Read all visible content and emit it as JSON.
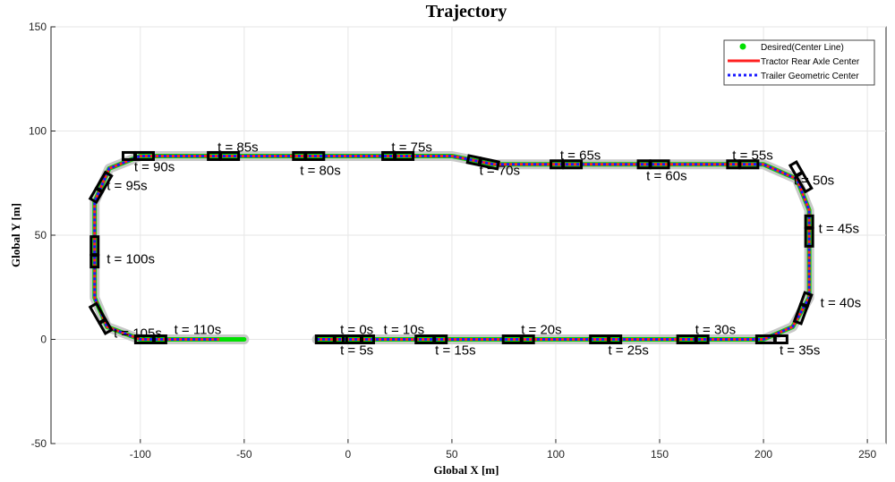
{
  "chart_data": {
    "type": "line",
    "title": "Trajectory",
    "xlabel": "Global X [m]",
    "ylabel": "Global Y [m]",
    "xlim": [
      -143,
      259
    ],
    "ylim": [
      -50,
      150
    ],
    "xticks": [
      -100,
      -50,
      0,
      50,
      100,
      150,
      200,
      250
    ],
    "yticks": [
      -50,
      0,
      50,
      100,
      150
    ],
    "grid": true,
    "legend_position": "top-right",
    "legend": [
      "Desired(Center Line)",
      "Tractor Rear Axle Center",
      "Trailer Geometric Center"
    ],
    "colors": {
      "desired": "#00e000",
      "tractor": "#ff2020",
      "trailer": "#1a1aff",
      "band": "#c8c8c8",
      "vehicle": "#000000"
    },
    "path": [
      [
        -15,
        0
      ],
      [
        200,
        0
      ],
      [
        214,
        6
      ],
      [
        222,
        20
      ],
      [
        222,
        62
      ],
      [
        216,
        77
      ],
      [
        200,
        84
      ],
      [
        70,
        84
      ],
      [
        50,
        88
      ],
      [
        -100,
        88
      ],
      [
        -115,
        82
      ],
      [
        -122,
        66
      ],
      [
        -122,
        20
      ],
      [
        -116,
        6
      ],
      [
        -100,
        0
      ],
      [
        -50,
        0
      ]
    ],
    "vehicles": [
      [
        -8,
        0,
        0
      ],
      [
        5,
        0,
        0
      ],
      [
        40,
        0,
        0
      ],
      [
        82,
        0,
        0
      ],
      [
        124,
        0,
        0
      ],
      [
        166,
        0,
        0
      ],
      [
        204,
        0,
        0
      ],
      [
        219,
        15,
        70
      ],
      [
        222,
        52,
        90
      ],
      [
        218,
        78,
        120
      ],
      [
        190,
        84,
        180
      ],
      [
        147,
        84,
        180
      ],
      [
        105,
        84,
        180
      ],
      [
        65,
        85,
        168
      ],
      [
        24,
        88,
        180
      ],
      [
        -19,
        88,
        180
      ],
      [
        -60,
        88,
        180
      ],
      [
        -101,
        88,
        180
      ],
      [
        -119,
        73,
        240
      ],
      [
        -122,
        42,
        270
      ],
      [
        -119,
        10,
        300
      ],
      [
        -95,
        0,
        0
      ]
    ],
    "annotations": [
      {
        "text": "t = 0s",
        "x": -3.8,
        "y": 4.7
      },
      {
        "text": "t = 5s",
        "x": -3.8,
        "y": -5.2
      },
      {
        "text": "t = 10s",
        "x": 6.8,
        "y": 4.7
      },
      {
        "text": "t = 15s",
        "x": 41.9,
        "y": -5.2
      },
      {
        "text": "t = 20s",
        "x": 83.3,
        "y": 4.7
      },
      {
        "text": "t = 25s",
        "x": 125.2,
        "y": -5.2
      },
      {
        "text": "t = 30s",
        "x": 167.1,
        "y": 4.7
      },
      {
        "text": "t = 35s",
        "x": 207.7,
        "y": -5.2
      },
      {
        "text": "t = 40s",
        "x": 227.4,
        "y": 17.6
      },
      {
        "text": "t = 45s",
        "x": 226.5,
        "y": 53.2
      },
      {
        "text": "t = 50s",
        "x": 214.5,
        "y": 76.4
      },
      {
        "text": "t = 55s",
        "x": 185,
        "y": 88.4
      },
      {
        "text": "t = 60s",
        "x": 143.6,
        "y": 78.5
      },
      {
        "text": "t = 65s",
        "x": 102.1,
        "y": 88.4
      },
      {
        "text": "t = 70s",
        "x": 63.2,
        "y": 81.1
      },
      {
        "text": "t = 75s",
        "x": 20.9,
        "y": 92.3
      },
      {
        "text": "t = 80s",
        "x": -23.1,
        "y": 81.1
      },
      {
        "text": "t = 85s",
        "x": -62.8,
        "y": 92.3
      },
      {
        "text": "t = 90s",
        "x": -103,
        "y": 82.8
      },
      {
        "text": "t = 95s",
        "x": -116.2,
        "y": 73.8
      },
      {
        "text": "t = 100s",
        "x": -116.2,
        "y": 38.6
      },
      {
        "text": "t = 105s",
        "x": -112.8,
        "y": 3
      },
      {
        "text": "t = 110s",
        "x": -93.2,
        "y": 4.7
      }
    ]
  }
}
